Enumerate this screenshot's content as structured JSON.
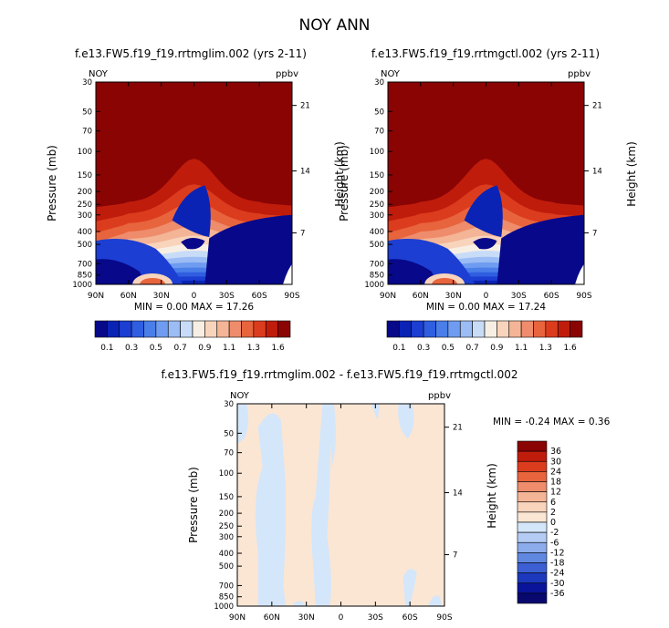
{
  "page": {
    "title": "NOY ANN"
  },
  "chart_data": [
    {
      "id": "panel1",
      "type": "heatmap",
      "title": "f.e13.FW5.f19_f19.rrtmglim.002 (yrs 2-11)",
      "variable": "NOY",
      "units": "ppbv",
      "ylabel": "Pressure (mb)",
      "ylabel_right": "Height (km)",
      "xticks": [
        "90N",
        "60N",
        "30N",
        "0",
        "30S",
        "60S",
        "90S"
      ],
      "yticks": [
        "30",
        "50",
        "70",
        "100",
        "150",
        "200",
        "250",
        "300",
        "400",
        "500",
        "700",
        "850",
        "1000"
      ],
      "yticks_right": [
        "21",
        "14",
        "7"
      ],
      "stats": "MIN =    0.00   MAX =   17.26",
      "colorbar_labels": [
        "0.1",
        "0.3",
        "0.5",
        "0.7",
        "0.9",
        "1.1",
        "1.3",
        "1.6"
      ],
      "colors": [
        "#08088a",
        "#0a23b4",
        "#1c3ed2",
        "#2f5ee0",
        "#4a7ee8",
        "#6f9cf0",
        "#9bbcf4",
        "#c8dcf8",
        "#f8efe4",
        "#f8d4bc",
        "#f4b496",
        "#ee8c6c",
        "#e8643c",
        "#dc3c1e",
        "#c01c0c",
        "#8a0404"
      ]
    },
    {
      "id": "panel2",
      "type": "heatmap",
      "title": "f.e13.FW5.f19_f19.rrtmgctl.002 (yrs 2-11)",
      "variable": "NOY",
      "units": "ppbv",
      "ylabel": "Pressure (mb)",
      "ylabel_right": "Height (km)",
      "xticks": [
        "90N",
        "60N",
        "30N",
        "0",
        "30S",
        "60S",
        "90S"
      ],
      "yticks": [
        "30",
        "50",
        "70",
        "100",
        "150",
        "200",
        "250",
        "300",
        "400",
        "500",
        "700",
        "850",
        "1000"
      ],
      "yticks_right": [
        "21",
        "14",
        "7"
      ],
      "stats": "MIN =    0.00   MAX =   17.24",
      "colorbar_labels": [
        "0.1",
        "0.3",
        "0.5",
        "0.7",
        "0.9",
        "1.1",
        "1.3",
        "1.6"
      ],
      "colors": [
        "#08088a",
        "#0a23b4",
        "#1c3ed2",
        "#2f5ee0",
        "#4a7ee8",
        "#6f9cf0",
        "#9bbcf4",
        "#c8dcf8",
        "#f8efe4",
        "#f8d4bc",
        "#f4b496",
        "#ee8c6c",
        "#e8643c",
        "#dc3c1e",
        "#c01c0c",
        "#8a0404"
      ]
    },
    {
      "id": "panel3",
      "type": "heatmap",
      "title": "f.e13.FW5.f19_f19.rrtmglim.002 - f.e13.FW5.f19_f19.rrtmgctl.002",
      "variable": "NOY",
      "units": "ppbv",
      "ylabel": "Pressure (mb)",
      "ylabel_right": "Height (km)",
      "xticks": [
        "90N",
        "60N",
        "30N",
        "0",
        "30S",
        "60S",
        "90S"
      ],
      "yticks": [
        "30",
        "50",
        "70",
        "100",
        "150",
        "200",
        "250",
        "300",
        "400",
        "500",
        "700",
        "850",
        "1000"
      ],
      "yticks_right": [
        "21",
        "14",
        "7"
      ],
      "stats": "MIN =   -0.24   MAX =    0.36",
      "colorbar_labels": [
        "36",
        "30",
        "24",
        "18",
        "12",
        "6",
        "2",
        "0",
        "-2",
        "-6",
        "-12",
        "-18",
        "-24",
        "-30",
        "-36"
      ],
      "colors": [
        "#8a0404",
        "#c01c0c",
        "#dc3c1e",
        "#e8643c",
        "#ee8c6c",
        "#f4b496",
        "#f8d4bc",
        "#fbe6d4",
        "#d4e6fa",
        "#b4ccf4",
        "#8cacec",
        "#6088e0",
        "#3c60d4",
        "#1c38bc",
        "#0a149a",
        "#08086e"
      ]
    }
  ]
}
